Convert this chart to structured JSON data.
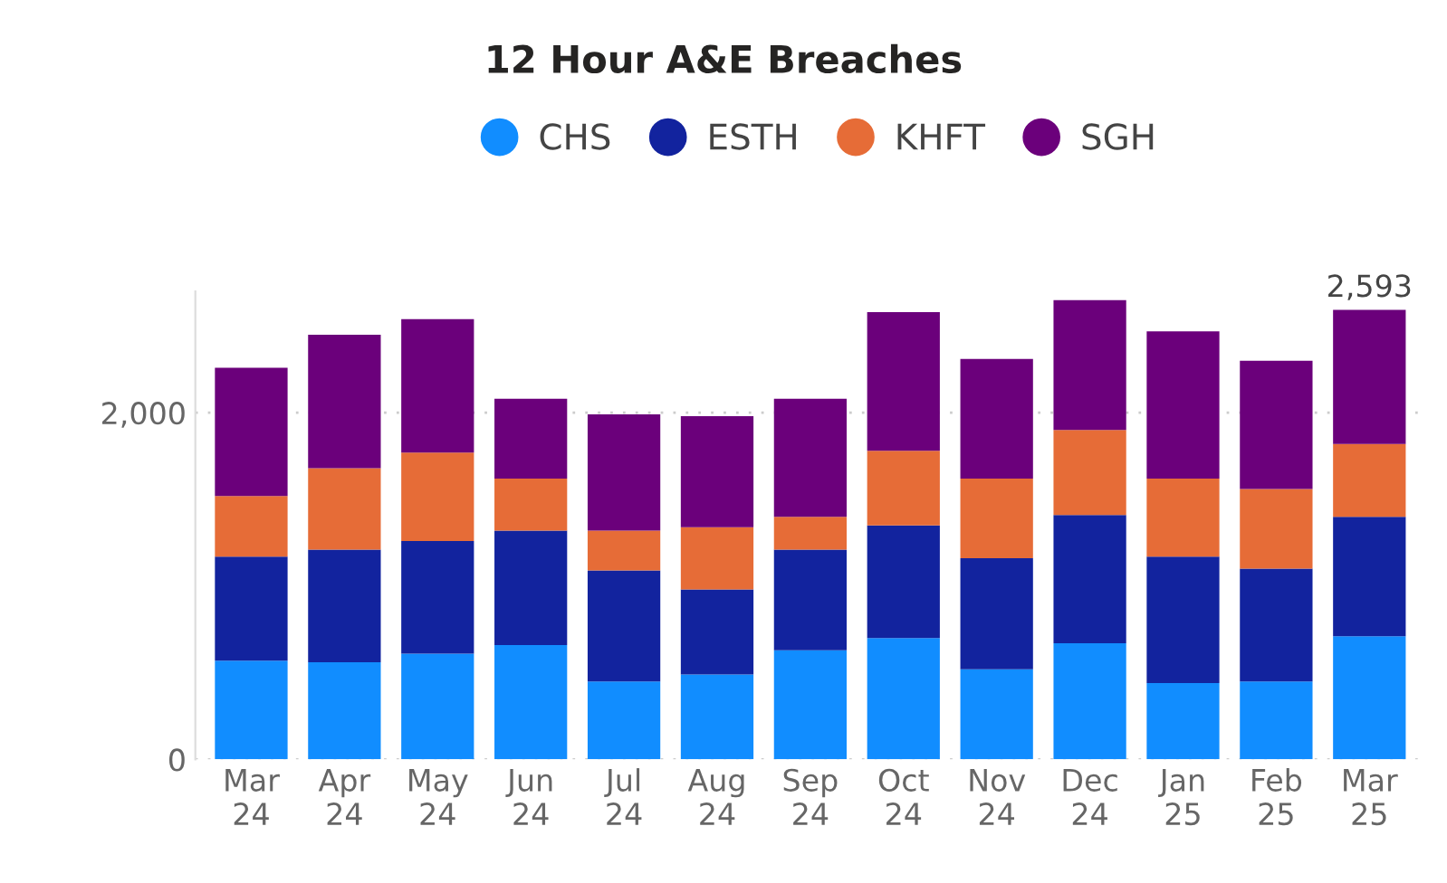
{
  "chart_data": {
    "type": "bar",
    "title": "12 Hour A&E Breaches",
    "stacked": true,
    "legend": "top",
    "grid": "y",
    "categories": [
      "Mar\n24",
      "Apr\n24",
      "May\n24",
      "Jun\n24",
      "Jul\n24",
      "Aug\n24",
      "Sep\n24",
      "Oct\n24",
      "Nov\n24",
      "Dec\n24",
      "Jan\n25",
      "Feb\n25",
      "Mar\n25"
    ],
    "series": [
      {
        "name": "CHS",
        "color": "#118dff",
        "values": [
          570,
          560,
          610,
          660,
          450,
          490,
          630,
          700,
          520,
          670,
          440,
          450,
          710
        ]
      },
      {
        "name": "ESTH",
        "color": "#12239e",
        "values": [
          600,
          650,
          650,
          660,
          640,
          490,
          580,
          650,
          640,
          740,
          730,
          650,
          690
        ]
      },
      {
        "name": "KHFT",
        "color": "#e66c37",
        "values": [
          350,
          470,
          510,
          300,
          230,
          360,
          190,
          430,
          460,
          490,
          450,
          460,
          420
        ]
      },
      {
        "name": "SGH",
        "color": "#6b007b",
        "values": [
          740,
          770,
          770,
          460,
          670,
          640,
          680,
          800,
          690,
          750,
          850,
          740,
          773
        ]
      }
    ],
    "totals": [
      null,
      null,
      null,
      null,
      null,
      null,
      null,
      null,
      null,
      null,
      null,
      null,
      "2,593"
    ],
    "ylim": [
      0,
      2700
    ],
    "yticks": [
      0,
      {
        "value": 2000,
        "label": "2,000"
      }
    ]
  }
}
